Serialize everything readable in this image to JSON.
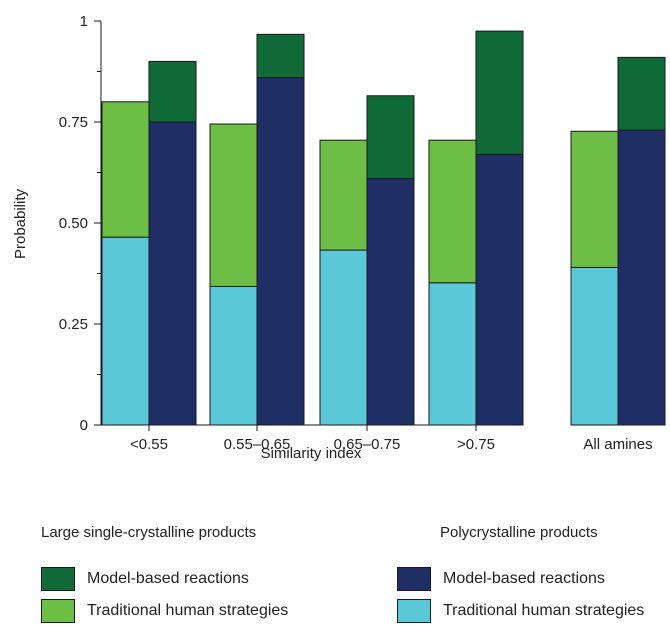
{
  "chart_data": {
    "type": "bar",
    "subtype": "stacked-grouped",
    "categories": [
      "<0.55",
      "0.55–0.65",
      "0.65–0.75",
      ">0.75",
      "All amines"
    ],
    "xlabel": "Similarity index",
    "ylabel": "Probability",
    "ylim": [
      0,
      1
    ],
    "yticks": [
      {
        "value": 0,
        "label": "0"
      },
      {
        "value": 0.25,
        "label": "0.25"
      },
      {
        "value": 0.5,
        "label": "0.50"
      },
      {
        "value": 0.75,
        "label": "0.75"
      },
      {
        "value": 1,
        "label": "1"
      }
    ],
    "groups": [
      {
        "name": "Traditional human strategies",
        "series": [
          {
            "name": "Polycrystalline products",
            "values": [
              0.465,
              0.343,
              0.433,
              0.352,
              0.39
            ]
          },
          {
            "name": "Large single-crystalline products",
            "values": [
              0.335,
              0.402,
              0.272,
              0.353,
              0.337
            ]
          }
        ]
      },
      {
        "name": "Model-based reactions",
        "series": [
          {
            "name": "Polycrystalline products",
            "values": [
              0.75,
              0.86,
              0.61,
              0.67,
              0.73
            ]
          },
          {
            "name": "Large single-crystalline products",
            "values": [
              0.15,
              0.107,
              0.205,
              0.305,
              0.18
            ]
          }
        ]
      }
    ],
    "grid": false
  },
  "colors": {
    "traditional_single": "#6cbe45",
    "traditional_poly": "#5bc8da",
    "model_single": "#106a38",
    "model_poly": "#202e66"
  },
  "legend": {
    "single_heading": "Large single-crystalline products",
    "poly_heading": "Polycrystalline products",
    "model_label": "Model-based reactions",
    "traditional_label": "Traditional human strategies"
  }
}
